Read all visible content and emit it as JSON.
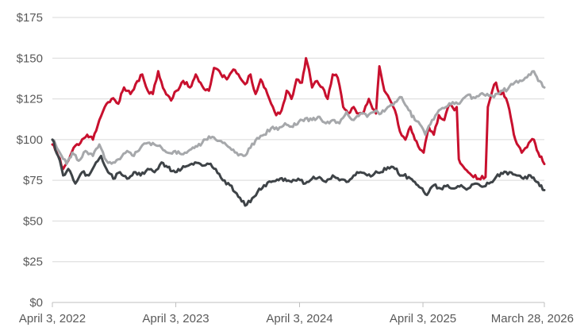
{
  "chart_data": {
    "type": "line",
    "title": "",
    "xlabel": "",
    "ylabel": "",
    "ylim": [
      0,
      175
    ],
    "yticks": [
      0,
      25,
      50,
      75,
      100,
      125,
      150,
      175
    ],
    "ytick_labels": [
      "$0",
      "$25",
      "$50",
      "$75",
      "$100",
      "$125",
      "$150",
      "$175"
    ],
    "xlim": [
      "2022-04-03",
      "2026-03-28"
    ],
    "xticks": [
      "2022-04-03",
      "2023-04-03",
      "2024-04-03",
      "2025-04-03",
      "2026-03-28"
    ],
    "xtick_labels": [
      "April 3, 2022",
      "April 3, 2023",
      "April 3, 2024",
      "April 3, 2025",
      "March 28, 2026"
    ],
    "grid": true,
    "legend": "none",
    "series": [
      {
        "color": "#c8102e",
        "points": [
          [
            "2022-04-03",
            97
          ],
          [
            "2022-04-20",
            90
          ],
          [
            "2022-05-05",
            82
          ],
          [
            "2022-05-20",
            87
          ],
          [
            "2022-06-05",
            95
          ],
          [
            "2022-06-25",
            98
          ],
          [
            "2022-07-15",
            103
          ],
          [
            "2022-08-01",
            100
          ],
          [
            "2022-08-20",
            112
          ],
          [
            "2022-09-05",
            120
          ],
          [
            "2022-09-25",
            125
          ],
          [
            "2022-10-15",
            122
          ],
          [
            "2022-11-01",
            132
          ],
          [
            "2022-11-20",
            128
          ],
          [
            "2022-12-05",
            134
          ],
          [
            "2022-12-25",
            140
          ],
          [
            "2023-01-10",
            130
          ],
          [
            "2023-01-25",
            128
          ],
          [
            "2023-02-10",
            142
          ],
          [
            "2023-03-01",
            130
          ],
          [
            "2023-03-20",
            124
          ],
          [
            "2023-04-05",
            130
          ],
          [
            "2023-04-25",
            136
          ],
          [
            "2023-05-15",
            132
          ],
          [
            "2023-06-01",
            140
          ],
          [
            "2023-06-20",
            133
          ],
          [
            "2023-07-10",
            130
          ],
          [
            "2023-07-25",
            144
          ],
          [
            "2023-08-15",
            140
          ],
          [
            "2023-09-01",
            137
          ],
          [
            "2023-09-20",
            143
          ],
          [
            "2023-10-10",
            138
          ],
          [
            "2023-10-25",
            134
          ],
          [
            "2023-11-10",
            140
          ],
          [
            "2023-11-25",
            128
          ],
          [
            "2023-12-10",
            137
          ],
          [
            "2023-12-25",
            131
          ],
          [
            "2024-01-10",
            122
          ],
          [
            "2024-01-25",
            115
          ],
          [
            "2024-02-10",
            118
          ],
          [
            "2024-02-25",
            130
          ],
          [
            "2024-03-10",
            125
          ],
          [
            "2024-03-25",
            137
          ],
          [
            "2024-04-10",
            135
          ],
          [
            "2024-04-22",
            150
          ],
          [
            "2024-05-01",
            143
          ],
          [
            "2024-05-10",
            132
          ],
          [
            "2024-05-25",
            136
          ],
          [
            "2024-06-10",
            132
          ],
          [
            "2024-06-25",
            125
          ],
          [
            "2024-07-10",
            140
          ],
          [
            "2024-07-25",
            138
          ],
          [
            "2024-08-10",
            120
          ],
          [
            "2024-08-25",
            116
          ],
          [
            "2024-09-10",
            120
          ],
          [
            "2024-09-25",
            116
          ],
          [
            "2024-10-10",
            117
          ],
          [
            "2024-10-25",
            125
          ],
          [
            "2024-11-05",
            119
          ],
          [
            "2024-11-15",
            116
          ],
          [
            "2024-11-25",
            145
          ],
          [
            "2024-12-10",
            130
          ],
          [
            "2024-12-25",
            125
          ],
          [
            "2025-01-10",
            118
          ],
          [
            "2025-01-25",
            105
          ],
          [
            "2025-02-10",
            100
          ],
          [
            "2025-02-25",
            108
          ],
          [
            "2025-03-10",
            100
          ],
          [
            "2025-03-25",
            94
          ],
          [
            "2025-04-05",
            92
          ],
          [
            "2025-04-20",
            108
          ],
          [
            "2025-05-05",
            103
          ],
          [
            "2025-05-20",
            115
          ],
          [
            "2025-06-05",
            112
          ],
          [
            "2025-06-20",
            122
          ],
          [
            "2025-07-05",
            118
          ],
          [
            "2025-07-12",
            120
          ],
          [
            "2025-07-18",
            88
          ],
          [
            "2025-08-05",
            82
          ],
          [
            "2025-08-25",
            78
          ],
          [
            "2025-09-15",
            76
          ],
          [
            "2025-10-05",
            77
          ],
          [
            "2025-10-12",
            120
          ],
          [
            "2025-10-25",
            130
          ],
          [
            "2025-11-05",
            135
          ],
          [
            "2025-11-15",
            128
          ],
          [
            "2025-11-25",
            130
          ],
          [
            "2025-12-10",
            122
          ],
          [
            "2026-01-01",
            100
          ],
          [
            "2026-01-20",
            92
          ],
          [
            "2026-02-10",
            98
          ],
          [
            "2026-02-25",
            100
          ],
          [
            "2026-03-10",
            92
          ],
          [
            "2026-03-28",
            85
          ]
        ]
      },
      {
        "color": "#a6a8ab",
        "points": [
          [
            "2022-04-03",
            100
          ],
          [
            "2022-04-25",
            92
          ],
          [
            "2022-05-15",
            85
          ],
          [
            "2022-06-01",
            92
          ],
          [
            "2022-06-20",
            87
          ],
          [
            "2022-07-10",
            93
          ],
          [
            "2022-08-01",
            90
          ],
          [
            "2022-08-20",
            97
          ],
          [
            "2022-09-10",
            87
          ],
          [
            "2022-09-30",
            86
          ],
          [
            "2022-10-20",
            88
          ],
          [
            "2022-11-10",
            93
          ],
          [
            "2022-11-30",
            90
          ],
          [
            "2022-12-20",
            95
          ],
          [
            "2023-01-10",
            98
          ],
          [
            "2023-01-30",
            97
          ],
          [
            "2023-02-20",
            95
          ],
          [
            "2023-03-10",
            92
          ],
          [
            "2023-04-01",
            93
          ],
          [
            "2023-04-20",
            91
          ],
          [
            "2023-05-10",
            93
          ],
          [
            "2023-06-01",
            96
          ],
          [
            "2023-06-20",
            98
          ],
          [
            "2023-07-10",
            102
          ],
          [
            "2023-07-30",
            100
          ],
          [
            "2023-08-20",
            98
          ],
          [
            "2023-09-10",
            95
          ],
          [
            "2023-09-30",
            92
          ],
          [
            "2023-10-20",
            90
          ],
          [
            "2023-11-10",
            95
          ],
          [
            "2023-11-30",
            101
          ],
          [
            "2023-12-20",
            103
          ],
          [
            "2024-01-10",
            107
          ],
          [
            "2024-01-30",
            106
          ],
          [
            "2024-02-20",
            110
          ],
          [
            "2024-03-10",
            108
          ],
          [
            "2024-04-01",
            111
          ],
          [
            "2024-04-20",
            113
          ],
          [
            "2024-05-10",
            112
          ],
          [
            "2024-06-01",
            114
          ],
          [
            "2024-06-20",
            110
          ],
          [
            "2024-07-10",
            112
          ],
          [
            "2024-07-30",
            110
          ],
          [
            "2024-08-20",
            117
          ],
          [
            "2024-09-10",
            112
          ],
          [
            "2024-09-30",
            116
          ],
          [
            "2024-10-20",
            114
          ],
          [
            "2024-11-10",
            117
          ],
          [
            "2024-11-30",
            116
          ],
          [
            "2024-12-20",
            120
          ],
          [
            "2025-01-10",
            123
          ],
          [
            "2025-01-30",
            126
          ],
          [
            "2025-02-20",
            118
          ],
          [
            "2025-03-10",
            112
          ],
          [
            "2025-03-30",
            108
          ],
          [
            "2025-04-10",
            103
          ],
          [
            "2025-04-30",
            112
          ],
          [
            "2025-05-20",
            118
          ],
          [
            "2025-06-10",
            120
          ],
          [
            "2025-06-30",
            123
          ],
          [
            "2025-07-20",
            122
          ],
          [
            "2025-08-10",
            127
          ],
          [
            "2025-08-30",
            126
          ],
          [
            "2025-09-20",
            128
          ],
          [
            "2025-10-10",
            128
          ],
          [
            "2025-10-30",
            126
          ],
          [
            "2025-11-20",
            130
          ],
          [
            "2025-12-10",
            131
          ],
          [
            "2025-12-30",
            135
          ],
          [
            "2026-01-20",
            136
          ],
          [
            "2026-02-10",
            140
          ],
          [
            "2026-02-25",
            142
          ],
          [
            "2026-03-10",
            136
          ],
          [
            "2026-03-28",
            132
          ]
        ]
      },
      {
        "color": "#3e4347",
        "points": [
          [
            "2022-04-03",
            100
          ],
          [
            "2022-04-20",
            90
          ],
          [
            "2022-05-05",
            78
          ],
          [
            "2022-05-20",
            82
          ],
          [
            "2022-06-10",
            73
          ],
          [
            "2022-06-30",
            80
          ],
          [
            "2022-07-20",
            78
          ],
          [
            "2022-08-10",
            86
          ],
          [
            "2022-08-25",
            90
          ],
          [
            "2022-09-10",
            82
          ],
          [
            "2022-09-30",
            76
          ],
          [
            "2022-10-20",
            80
          ],
          [
            "2022-11-10",
            76
          ],
          [
            "2022-11-30",
            80
          ],
          [
            "2022-12-20",
            78
          ],
          [
            "2023-01-10",
            82
          ],
          [
            "2023-01-30",
            80
          ],
          [
            "2023-02-20",
            86
          ],
          [
            "2023-03-10",
            83
          ],
          [
            "2023-04-01",
            80
          ],
          [
            "2023-04-20",
            82
          ],
          [
            "2023-05-10",
            84
          ],
          [
            "2023-05-30",
            86
          ],
          [
            "2023-06-20",
            84
          ],
          [
            "2023-07-10",
            85
          ],
          [
            "2023-07-30",
            82
          ],
          [
            "2023-08-20",
            75
          ],
          [
            "2023-09-10",
            72
          ],
          [
            "2023-09-30",
            67
          ],
          [
            "2023-10-15",
            62
          ],
          [
            "2023-10-30",
            60
          ],
          [
            "2023-11-15",
            64
          ],
          [
            "2023-12-01",
            68
          ],
          [
            "2023-12-20",
            72
          ],
          [
            "2024-01-10",
            74
          ],
          [
            "2024-02-01",
            75
          ],
          [
            "2024-02-20",
            76
          ],
          [
            "2024-03-10",
            74
          ],
          [
            "2024-03-30",
            76
          ],
          [
            "2024-04-20",
            73
          ],
          [
            "2024-05-10",
            76
          ],
          [
            "2024-06-01",
            77
          ],
          [
            "2024-06-20",
            74
          ],
          [
            "2024-07-10",
            78
          ],
          [
            "2024-07-30",
            75
          ],
          [
            "2024-08-20",
            74
          ],
          [
            "2024-09-10",
            78
          ],
          [
            "2024-09-30",
            80
          ],
          [
            "2024-10-20",
            78
          ],
          [
            "2024-11-10",
            79
          ],
          [
            "2024-11-30",
            80
          ],
          [
            "2024-12-20",
            83
          ],
          [
            "2025-01-10",
            82
          ],
          [
            "2025-01-30",
            78
          ],
          [
            "2025-02-20",
            77
          ],
          [
            "2025-03-10",
            74
          ],
          [
            "2025-04-01",
            70
          ],
          [
            "2025-04-15",
            66
          ],
          [
            "2025-05-05",
            72
          ],
          [
            "2025-05-25",
            70
          ],
          [
            "2025-06-15",
            72
          ],
          [
            "2025-07-05",
            70
          ],
          [
            "2025-07-25",
            72
          ],
          [
            "2025-08-15",
            70
          ],
          [
            "2025-09-05",
            73
          ],
          [
            "2025-09-25",
            71
          ],
          [
            "2025-10-15",
            73
          ],
          [
            "2025-11-05",
            77
          ],
          [
            "2025-11-25",
            79
          ],
          [
            "2025-12-15",
            80
          ],
          [
            "2026-01-05",
            78
          ],
          [
            "2026-01-25",
            76
          ],
          [
            "2026-02-15",
            78
          ],
          [
            "2026-03-05",
            74
          ],
          [
            "2026-03-28",
            69
          ]
        ]
      }
    ]
  }
}
